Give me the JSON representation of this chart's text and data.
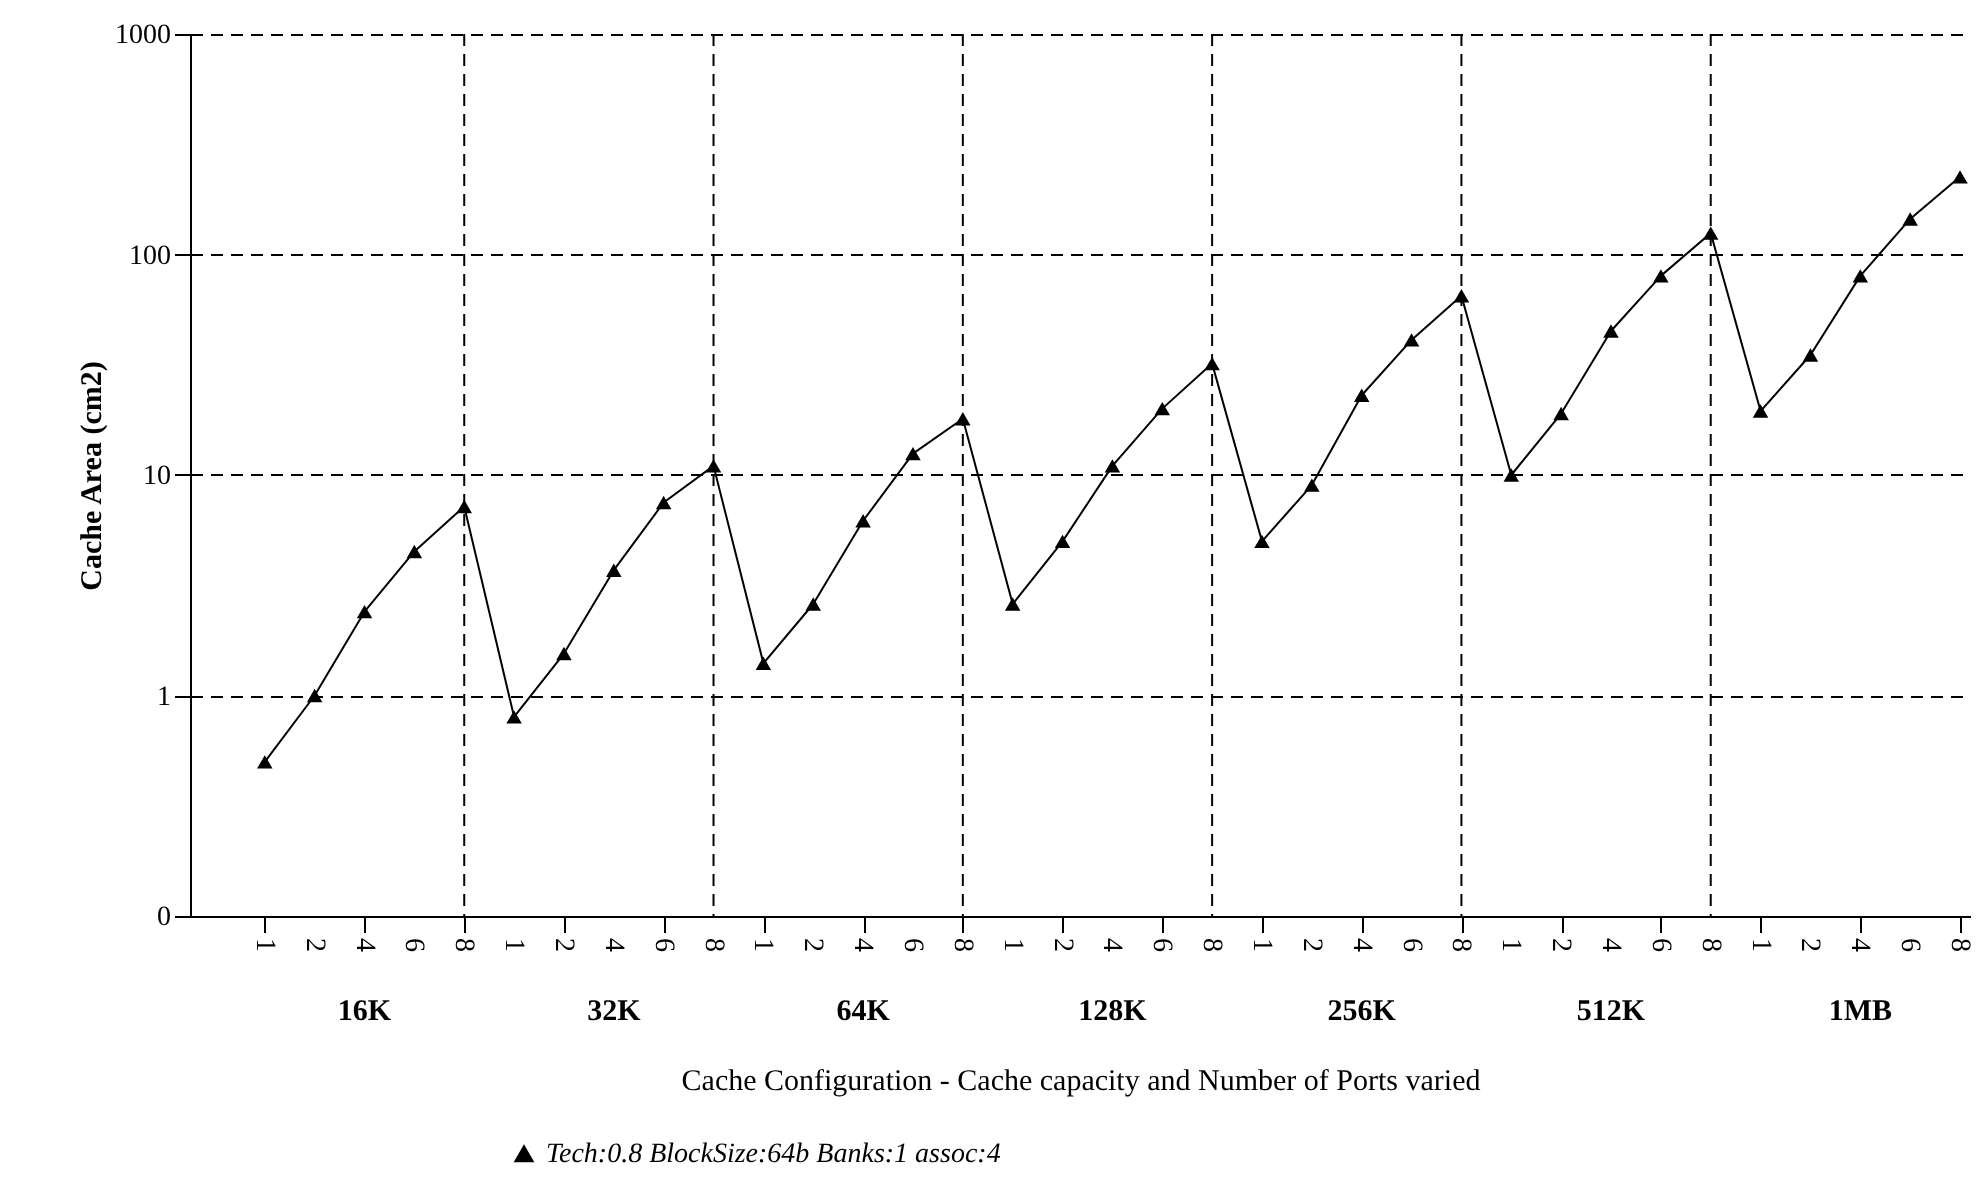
{
  "chart_data": {
    "type": "line",
    "xlabel": "Cache Configuration - Cache capacity and Number of Ports varied",
    "ylabel": "Cache Area (cm2)",
    "categories": [
      "1",
      "2",
      "4",
      "6",
      "8",
      "1",
      "2",
      "4",
      "6",
      "8",
      "1",
      "2",
      "4",
      "6",
      "8",
      "1",
      "2",
      "4",
      "6",
      "8",
      "1",
      "2",
      "4",
      "6",
      "8",
      "1",
      "2",
      "4",
      "6",
      "8",
      "1",
      "2",
      "4",
      "6",
      "8"
    ],
    "series": [
      {
        "name": "Tech:0.8 BlockSize:64b Banks:1 assoc:4",
        "color": "#000000",
        "values": [
          0.5,
          1.0,
          2.4,
          4.5,
          7.2,
          0.8,
          1.55,
          3.7,
          7.5,
          11,
          1.4,
          2.6,
          6.2,
          12.5,
          18,
          2.6,
          5.0,
          11,
          20,
          32,
          5.0,
          9.0,
          23,
          41,
          65,
          10,
          19,
          45,
          80,
          125,
          19.5,
          35,
          80,
          145,
          225
        ]
      }
    ],
    "ylim": [
      0.1,
      1000
    ],
    "yticks": [
      {
        "value": 0.1,
        "label": "0"
      },
      1,
      10,
      100,
      1000
    ],
    "log": true,
    "grid": true,
    "legend": "bottom",
    "marker": "triangle",
    "line_style": "solid",
    "annotations": [
      "16K",
      "32K",
      "64K",
      "128K",
      "256K",
      "512K",
      "1MB"
    ]
  }
}
